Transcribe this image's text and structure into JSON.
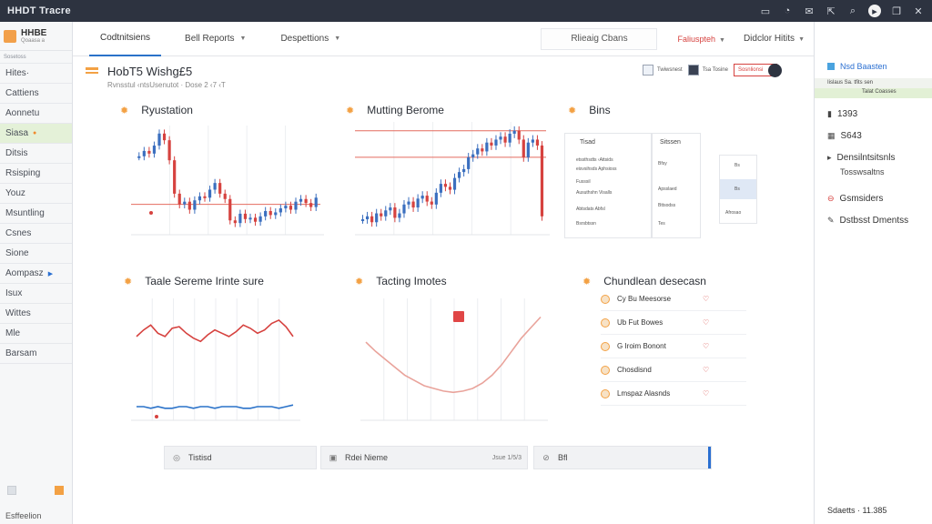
{
  "window": {
    "title": "HHDT Tracre"
  },
  "titlebar_icons": [
    "window-icon",
    "bell-icon",
    "mail-icon",
    "share-icon",
    "search-icon",
    "play-icon",
    "restore-icon",
    "close-icon"
  ],
  "brand": {
    "name": "HHBE",
    "sub": "Qoaasa a"
  },
  "sidebar": {
    "header": "Sosetoss",
    "items": [
      {
        "label": "Hites·"
      },
      {
        "label": "Cattiens"
      },
      {
        "label": "Aonnetu"
      },
      {
        "label": "Siasa",
        "mark": "●"
      },
      {
        "label": "Ditsis"
      },
      {
        "label": "Rsisping"
      },
      {
        "label": "Youz"
      },
      {
        "label": "Msuntling"
      },
      {
        "label": "Csnes"
      },
      {
        "label": "Sione"
      },
      {
        "label": "Aompasz",
        "mark": "▶"
      },
      {
        "label": "Isux"
      },
      {
        "label": "Wittes"
      },
      {
        "label": "Mle"
      },
      {
        "label": "Barsam"
      }
    ],
    "footer": "Esffeelion"
  },
  "topnav": {
    "tabs": [
      {
        "label": "Codtnitsiens"
      },
      {
        "label": "Bell Reports"
      },
      {
        "label": "Despettions"
      }
    ],
    "search_text": "Rlieaig Cbans",
    "red_item": "Faliuspteh",
    "user_item": "Didclor Hitits"
  },
  "page": {
    "title": "HobT5 Wishg£5",
    "subtitle": "Rvnsstul ‹ntsUsenutot · Dose 2 ‹7 ‹T",
    "tools": [
      "Twiwsnest",
      "Tsa Tosine",
      "Sosnlionsi"
    ]
  },
  "panels": {
    "p1_title": "Ryustation",
    "p2_title": "Mutting Berome",
    "p3_title": "Bins",
    "p4_title": "Taale Sereme Irinte sure",
    "p5_title": "Tacting Imotes",
    "p6_title": "Chundlean desecasn"
  },
  "bins": {
    "headers": [
      "Tisad",
      "Sitssen"
    ],
    "rows": [
      "etssthsdts  ‹Attsids",
      "eisvsihsds  Aphsioss",
      "Fusssil",
      "Ausuthshn  Visalls",
      "Abtsdats  Abfsl",
      "Bsrsbtssn"
    ],
    "right_rows": [
      "Bfsy",
      "Apsslaed",
      "Bttsodss",
      "Tes"
    ],
    "side_cells": [
      "Bs",
      "Bs",
      "Afrosao"
    ]
  },
  "chundlean_list": [
    {
      "label": "Cy Bu Meesorse"
    },
    {
      "label": "Ub Fut Bowes"
    },
    {
      "label": "G Iroim Bonont"
    },
    {
      "label": "Chosdisnd"
    },
    {
      "label": "Lmspaz Alasnds"
    }
  ],
  "bottombar": [
    {
      "label": "Tistisd",
      "right": ""
    },
    {
      "label": "Rdei Nieme",
      "right": "Jsue  1/5/3"
    },
    {
      "label": "Bfl",
      "right": ""
    }
  ],
  "right_panel": {
    "title": "Nsd Baasten",
    "band_line1": "Iislaus  Sa. tfits sen",
    "band_line2": "Talat  Coasses",
    "items": [
      {
        "label": "1393"
      },
      {
        "label": "S643"
      },
      {
        "label": "Densilntsitsnls"
      },
      {
        "label": "Tosswsaltns"
      },
      {
        "label": "Gsmsiders"
      },
      {
        "label": "Dstbsst Dmentss"
      }
    ],
    "footer": "Sdaetts · 11.385"
  },
  "chart_data": [
    {
      "type": "candlestick",
      "title": "Ryustation",
      "values": [
        58,
        62,
        60,
        66,
        75,
        70,
        55,
        30,
        22,
        24,
        18,
        25,
        28,
        27,
        33,
        38,
        30,
        26,
        10,
        8,
        15,
        11,
        12,
        9,
        13,
        17,
        14,
        16,
        19,
        21,
        18,
        24,
        26,
        23,
        20,
        27
      ]
    },
    {
      "type": "candlestick",
      "title": "Mutting Berome",
      "values": [
        18,
        20,
        16,
        22,
        20,
        24,
        26,
        19,
        22,
        28,
        30,
        26,
        32,
        34,
        30,
        28,
        36,
        42,
        40,
        38,
        46,
        50,
        52,
        60,
        62,
        66,
        64,
        70,
        68,
        72,
        74,
        70,
        76,
        78,
        72,
        60,
        70,
        72,
        68,
        20
      ]
    },
    {
      "type": "line",
      "title": "Taale Sereme Irinte sure",
      "series": [
        {
          "color": "#d6423f",
          "values": [
            48,
            52,
            55,
            50,
            48,
            53,
            54,
            50,
            47,
            45,
            49,
            52,
            50,
            48,
            51,
            55,
            53,
            50,
            52,
            56,
            58,
            54,
            48
          ]
        },
        {
          "color": "#2a72c9",
          "values": [
            5,
            5,
            4,
            5,
            4,
            4,
            5,
            5,
            4,
            5,
            5,
            4,
            5,
            5,
            5,
            4,
            4,
            5,
            5,
            5,
            4,
            5,
            6
          ]
        }
      ]
    },
    {
      "type": "line",
      "title": "Tacting Imotes",
      "series": [
        {
          "color": "#e9a39b",
          "values": [
            55,
            48,
            42,
            36,
            30,
            26,
            22,
            20,
            18,
            17,
            18,
            20,
            24,
            30,
            38,
            48,
            58,
            66,
            74
          ]
        }
      ]
    }
  ]
}
